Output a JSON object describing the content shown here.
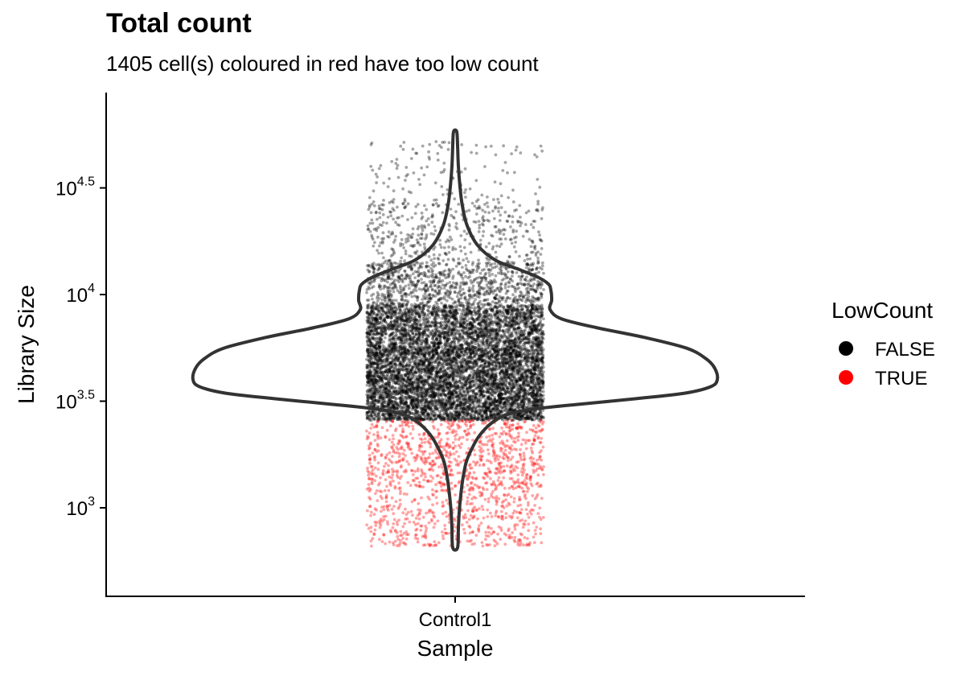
{
  "chart_data": {
    "type": "violin",
    "title": "Total count",
    "subtitle": "1405 cell(s) coloured in red have too low count",
    "xlabel": "Sample",
    "ylabel": "Library Size",
    "y_scale": "log10",
    "y_ticks": [
      {
        "value": 1000,
        "base": "10",
        "exp": "3"
      },
      {
        "value": 3162,
        "base": "10",
        "exp": "3.5"
      },
      {
        "value": 10000,
        "base": "10",
        "exp": "4"
      },
      {
        "value": 31623,
        "base": "10",
        "exp": "4.5"
      }
    ],
    "ylim": [
      500,
      100000
    ],
    "categories": [
      "Control1"
    ],
    "threshold": 2570,
    "low_count_cells": 1405,
    "distribution": {
      "min": 650,
      "max": 58000,
      "mode": 4000,
      "summary": "most cells between 2600 and 11000; long upper tail to ~58000; lower tail to ~650"
    },
    "legend": {
      "title": "LowCount",
      "position": "right",
      "entries": [
        {
          "label": "FALSE",
          "color": "#000000"
        },
        {
          "label": "TRUE",
          "color": "#ff0000"
        }
      ]
    },
    "colors": {
      "false": "#000000",
      "true": "#ff0000",
      "violin_stroke": "#333333"
    }
  }
}
